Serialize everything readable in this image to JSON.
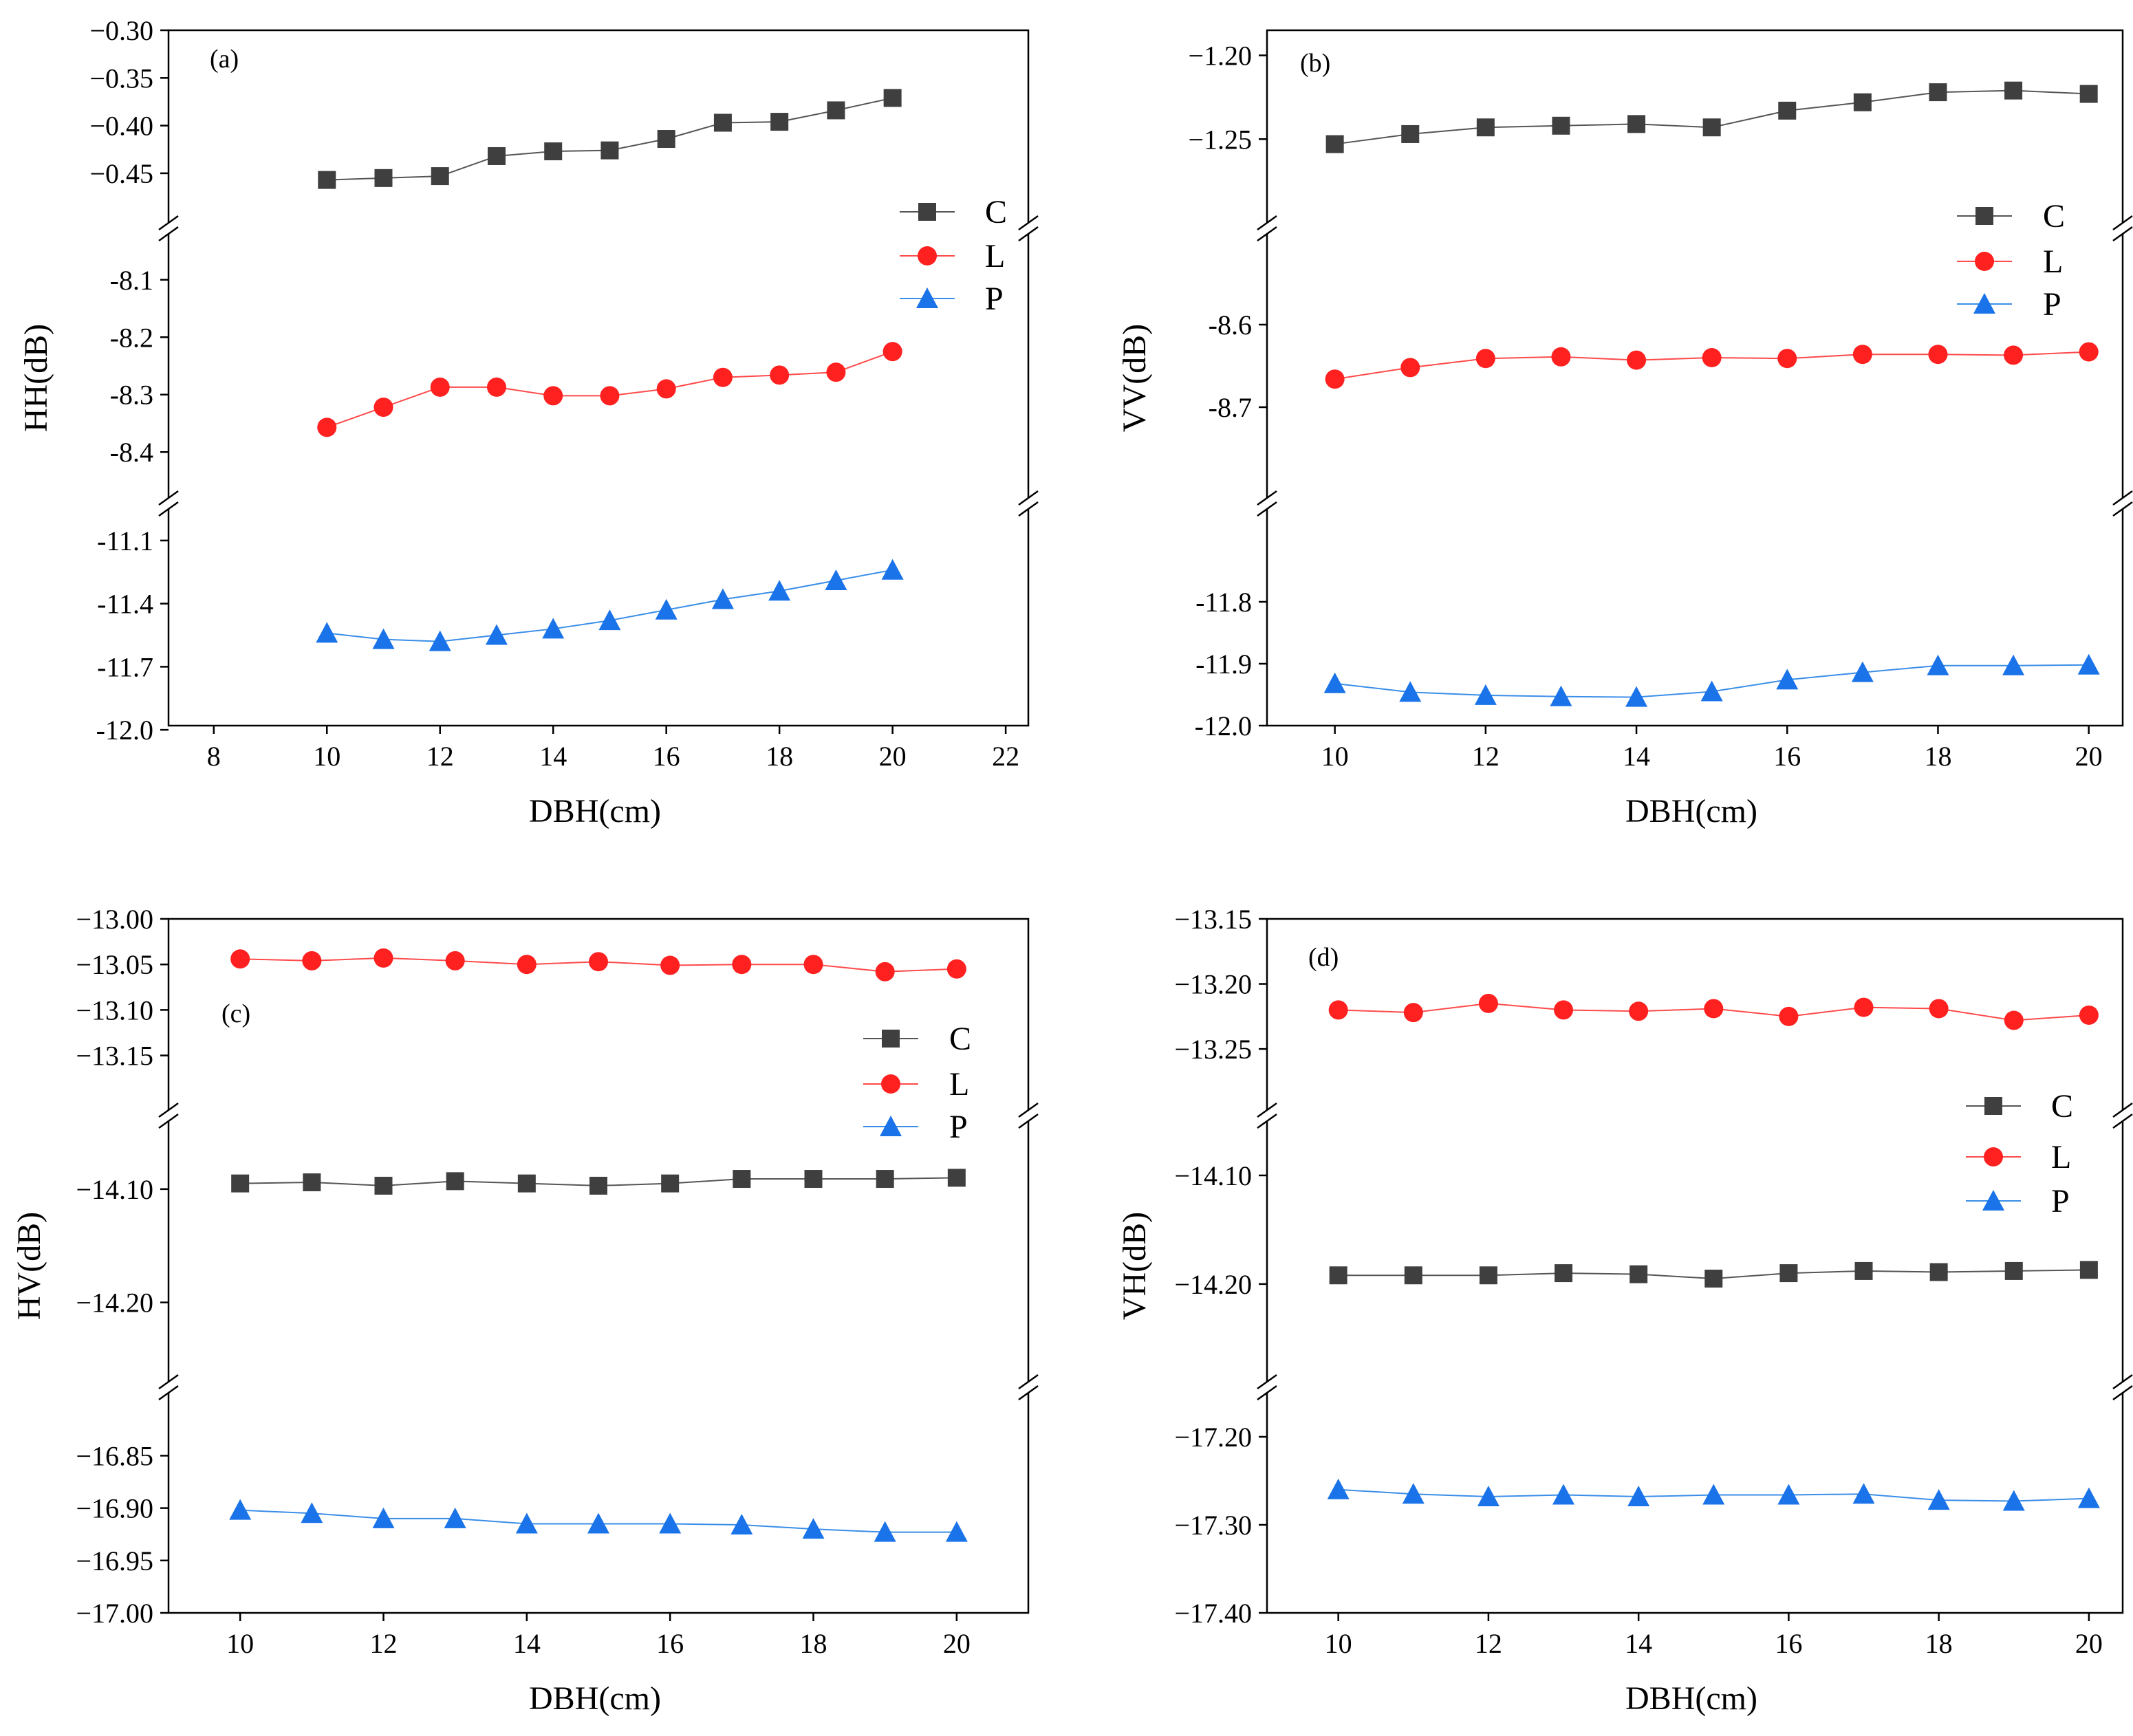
{
  "colors": {
    "C": "#3f3f3f",
    "L": "#ff2020",
    "P": "#1a73e8",
    "C_line": "#555555",
    "L_line": "#ff4a4a",
    "P_line": "#3a8ee8"
  },
  "legend_labels": [
    "C",
    "L",
    "P"
  ],
  "chart_data": [
    {
      "type": "line",
      "panel_label": "(a)",
      "xlabel": "DBH(cm)",
      "ylabel": "HH(dB)",
      "xlim": [
        7.2,
        22.4
      ],
      "xticks": [
        "8",
        "10",
        "12",
        "14",
        "16",
        "18",
        "20",
        "22"
      ],
      "xtick_values": [
        8,
        10,
        12,
        14,
        16,
        18,
        20,
        22
      ],
      "x": [
        10,
        11,
        12,
        13,
        14,
        15,
        16,
        17,
        18,
        19,
        20
      ],
      "segments": [
        {
          "range": [
            -11.98,
            -10.95
          ],
          "ticks": [
            -12.0,
            -11.7,
            -11.4,
            -11.1
          ],
          "tick_labels": [
            "-12.0",
            "-11.7",
            "-11.4",
            "-11.1"
          ]
        },
        {
          "range": [
            -8.48,
            -8.02
          ],
          "ticks": [
            -8.4,
            -8.3,
            -8.2,
            -8.1
          ],
          "tick_labels": [
            "-8.4",
            "-8.3",
            "-8.2",
            "-8.1"
          ]
        },
        {
          "range": [
            -0.502,
            -0.3
          ],
          "ticks": [
            -0.45,
            -0.4,
            -0.35,
            -0.3
          ],
          "tick_labels": [
            "−0.45",
            "−0.40",
            "−0.35",
            "−0.30"
          ]
        }
      ],
      "series": [
        {
          "name": "C",
          "segment": 2,
          "values": [
            -0.457,
            -0.455,
            -0.453,
            -0.432,
            -0.427,
            -0.426,
            -0.414,
            -0.397,
            -0.396,
            -0.384,
            -0.371
          ]
        },
        {
          "name": "L",
          "segment": 1,
          "values": [
            -8.357,
            -8.322,
            -8.287,
            -8.287,
            -8.302,
            -8.302,
            -8.29,
            -8.27,
            -8.266,
            -8.261,
            -8.225
          ]
        },
        {
          "name": "P",
          "segment": 0,
          "values": [
            -11.54,
            -11.57,
            -11.58,
            -11.55,
            -11.52,
            -11.48,
            -11.43,
            -11.38,
            -11.34,
            -11.29,
            -11.24
          ]
        }
      ],
      "legend_position": "right"
    },
    {
      "type": "line",
      "panel_label": "(b)",
      "xlabel": "DBH(cm)",
      "ylabel": "VV(dB)",
      "xlim": [
        9.1,
        20.45
      ],
      "xticks": [
        "10",
        "12",
        "14",
        "16",
        "18",
        "20"
      ],
      "xtick_values": [
        10,
        12,
        14,
        16,
        18,
        20
      ],
      "x": [
        10,
        11,
        12,
        13,
        14,
        15,
        16,
        17,
        18,
        19,
        20
      ],
      "segments": [
        {
          "range": [
            -12.0,
            -11.65
          ],
          "ticks": [
            -12.0,
            -11.9,
            -11.8
          ],
          "tick_labels": [
            "-12.0",
            "-11.9",
            "-11.8"
          ]
        },
        {
          "range": [
            -8.81,
            -8.49
          ],
          "ticks": [
            -8.7,
            -8.6
          ],
          "tick_labels": [
            "-8.7",
            "-8.6"
          ]
        },
        {
          "range": [
            -1.3,
            -1.185
          ],
          "ticks": [
            -1.25,
            -1.2
          ],
          "tick_labels": [
            "−1.25",
            "−1.20"
          ]
        }
      ],
      "series": [
        {
          "name": "C",
          "segment": 2,
          "values": [
            -1.253,
            -1.247,
            -1.243,
            -1.242,
            -1.241,
            -1.243,
            -1.233,
            -1.228,
            -1.222,
            -1.221,
            -1.223
          ]
        },
        {
          "name": "L",
          "segment": 1,
          "values": [
            -8.666,
            -8.652,
            -8.641,
            -8.639,
            -8.643,
            -8.64,
            -8.641,
            -8.636,
            -8.636,
            -8.637,
            -8.633
          ]
        },
        {
          "name": "P",
          "segment": 0,
          "values": [
            -11.932,
            -11.946,
            -11.951,
            -11.953,
            -11.954,
            -11.945,
            -11.926,
            -11.914,
            -11.903,
            -11.903,
            -11.902
          ]
        }
      ],
      "legend_position": "right"
    },
    {
      "type": "line",
      "panel_label": "(c)",
      "xlabel": "DBH(cm)",
      "ylabel": "HV(dB)",
      "xlim": [
        9.0,
        21.0
      ],
      "xticks": [
        "10",
        "12",
        "14",
        "16",
        "18",
        "20"
      ],
      "xtick_values": [
        10,
        12,
        14,
        16,
        18,
        20
      ],
      "x": [
        10,
        11,
        12,
        13,
        14,
        15,
        16,
        17,
        18,
        19,
        20
      ],
      "segments": [
        {
          "range": [
            -17.0,
            -16.79
          ],
          "ticks": [
            -17.0,
            -16.95,
            -16.9,
            -16.85
          ],
          "tick_labels": [
            "−17.00",
            "−16.95",
            "−16.90",
            "−16.85"
          ]
        },
        {
          "range": [
            -14.27,
            -14.04
          ],
          "ticks": [
            -14.2,
            -14.1
          ],
          "tick_labels": [
            "−14.20",
            "−14.10"
          ]
        },
        {
          "range": [
            -13.21,
            -13.0
          ],
          "ticks": [
            -13.15,
            -13.1,
            -13.05,
            -13.0
          ],
          "tick_labels": [
            "−13.15",
            "−13.10",
            "−13.05",
            "−13.00"
          ]
        }
      ],
      "series": [
        {
          "name": "C",
          "segment": 1,
          "values": [
            -14.095,
            -14.094,
            -14.097,
            -14.093,
            -14.095,
            -14.097,
            -14.095,
            -14.091,
            -14.091,
            -14.091,
            -14.09
          ]
        },
        {
          "name": "L",
          "segment": 2,
          "values": [
            -13.044,
            -13.046,
            -13.043,
            -13.046,
            -13.05,
            -13.047,
            -13.051,
            -13.05,
            -13.05,
            -13.058,
            -13.055
          ]
        },
        {
          "name": "P",
          "segment": 0,
          "values": [
            -16.902,
            -16.905,
            -16.91,
            -16.91,
            -16.915,
            -16.915,
            -16.915,
            -16.916,
            -16.92,
            -16.923,
            -16.923
          ]
        }
      ],
      "legend_position": "right"
    },
    {
      "type": "line",
      "panel_label": "(d)",
      "xlabel": "DBH(cm)",
      "ylabel": "VH(dB)",
      "xlim": [
        9.05,
        20.45
      ],
      "xticks": [
        "10",
        "12",
        "14",
        "16",
        "18",
        "20"
      ],
      "xtick_values": [
        10,
        12,
        14,
        16,
        18,
        20
      ],
      "x": [
        10,
        11,
        12,
        13,
        14,
        15,
        16,
        17,
        18,
        19,
        20
      ],
      "segments": [
        {
          "range": [
            -17.4,
            -17.15
          ],
          "ticks": [
            -17.4,
            -17.3,
            -17.2
          ],
          "tick_labels": [
            "−17.40",
            "−17.30",
            "−17.20"
          ]
        },
        {
          "range": [
            -14.29,
            -14.05
          ],
          "ticks": [
            -14.2,
            -14.1
          ],
          "tick_labels": [
            "−14.20",
            "−14.10"
          ]
        },
        {
          "range": [
            -13.297,
            -13.15
          ],
          "ticks": [
            -13.25,
            -13.2,
            -13.15
          ],
          "tick_labels": [
            "−13.25",
            "−13.20",
            "−13.15"
          ]
        }
      ],
      "series": [
        {
          "name": "C",
          "segment": 1,
          "values": [
            -14.192,
            -14.192,
            -14.192,
            -14.19,
            -14.191,
            -14.195,
            -14.19,
            -14.188,
            -14.189,
            -14.188,
            -14.187
          ]
        },
        {
          "name": "L",
          "segment": 2,
          "values": [
            -13.22,
            -13.222,
            -13.215,
            -13.22,
            -13.221,
            -13.219,
            -13.225,
            -13.218,
            -13.219,
            -13.228,
            -13.224
          ]
        },
        {
          "name": "P",
          "segment": 0,
          "values": [
            -17.26,
            -17.265,
            -17.268,
            -17.266,
            -17.268,
            -17.266,
            -17.266,
            -17.265,
            -17.272,
            -17.273,
            -17.27
          ]
        }
      ],
      "legend_position": "right"
    }
  ]
}
